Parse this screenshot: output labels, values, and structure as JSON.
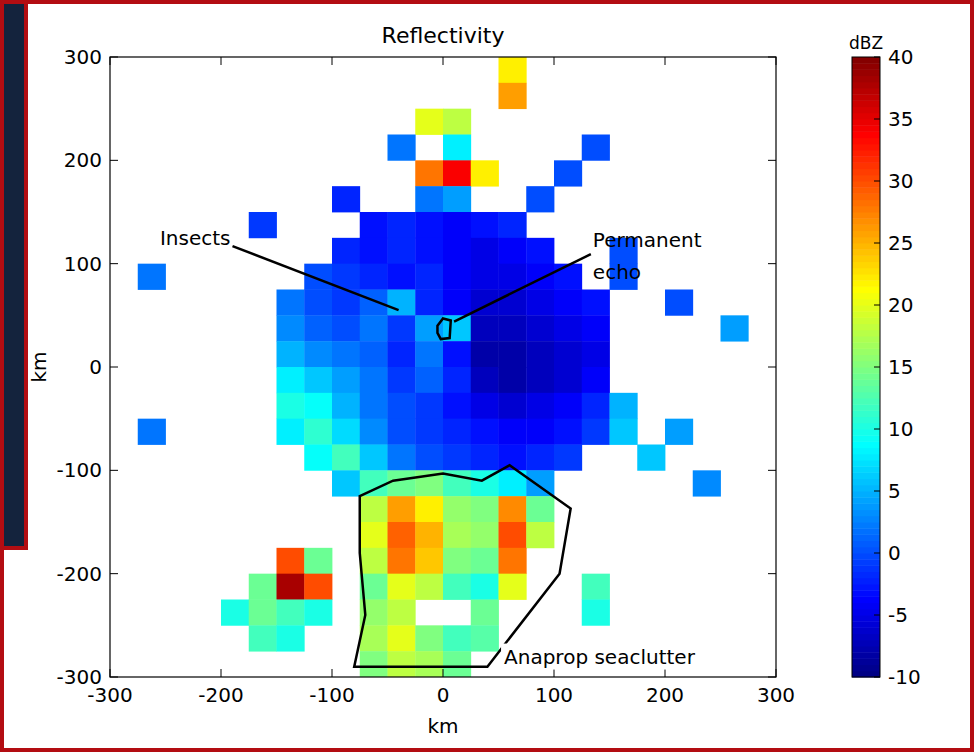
{
  "chart_data": {
    "type": "heatmap",
    "title": "Reflectivity",
    "xlabel": "km",
    "ylabel": "km",
    "xlim": [
      -300,
      300
    ],
    "ylim": [
      -300,
      300
    ],
    "xticks": [
      -300,
      -200,
      -100,
      0,
      100,
      200,
      300
    ],
    "yticks": [
      -300,
      -200,
      -100,
      0,
      100,
      200,
      300
    ],
    "x": [
      -287.5,
      -262.5,
      -237.5,
      -212.5,
      -187.5,
      -162.5,
      -137.5,
      -112.5,
      -87.5,
      -62.5,
      -37.5,
      -12.5,
      12.5,
      37.5,
      62.5,
      87.5,
      112.5,
      137.5,
      162.5,
      187.5,
      212.5,
      237.5,
      262.5,
      287.5
    ],
    "y": [
      287.5,
      262.5,
      237.5,
      212.5,
      187.5,
      162.5,
      137.5,
      112.5,
      87.5,
      62.5,
      37.5,
      12.5,
      -12.5,
      -37.5,
      -62.5,
      -87.5,
      -112.5,
      -137.5,
      -162.5,
      -187.5,
      -212.5,
      -237.5,
      -262.5,
      -287.5
    ],
    "z": [
      [
        null,
        null,
        null,
        null,
        null,
        null,
        null,
        null,
        null,
        null,
        null,
        null,
        null,
        null,
        22,
        null,
        null,
        null,
        null,
        null,
        null,
        null,
        null,
        null
      ],
      [
        null,
        null,
        null,
        null,
        null,
        null,
        null,
        null,
        null,
        null,
        null,
        null,
        null,
        null,
        26,
        null,
        null,
        null,
        null,
        null,
        null,
        null,
        null,
        null
      ],
      [
        null,
        null,
        null,
        null,
        null,
        null,
        null,
        null,
        null,
        null,
        null,
        20,
        18,
        null,
        null,
        null,
        null,
        null,
        null,
        null,
        null,
        null,
        null,
        null
      ],
      [
        null,
        null,
        null,
        null,
        null,
        null,
        null,
        null,
        null,
        null,
        2,
        null,
        8,
        null,
        null,
        null,
        null,
        0,
        null,
        null,
        null,
        null,
        null,
        null
      ],
      [
        null,
        null,
        null,
        null,
        null,
        null,
        null,
        null,
        null,
        null,
        null,
        28,
        34,
        22,
        null,
        null,
        0,
        null,
        null,
        null,
        null,
        null,
        null,
        null
      ],
      [
        null,
        null,
        null,
        null,
        null,
        null,
        null,
        null,
        -2,
        null,
        null,
        2,
        4,
        null,
        null,
        0,
        null,
        null,
        null,
        null,
        null,
        null,
        null,
        null
      ],
      [
        null,
        null,
        null,
        null,
        null,
        -1,
        null,
        null,
        null,
        -3,
        -2,
        -3,
        -4,
        -3,
        -2,
        null,
        null,
        null,
        null,
        null,
        null,
        null,
        null,
        null
      ],
      [
        null,
        null,
        null,
        null,
        null,
        null,
        null,
        null,
        -2,
        -3,
        -2,
        -3,
        -4,
        -5,
        -4,
        -3,
        null,
        null,
        0,
        null,
        null,
        null,
        null,
        null
      ],
      [
        null,
        2,
        null,
        null,
        null,
        null,
        null,
        0,
        -1,
        -2,
        -3,
        -2,
        -4,
        -5,
        -5,
        -4,
        -3,
        null,
        0,
        null,
        null,
        null,
        null,
        null
      ],
      [
        null,
        null,
        null,
        null,
        null,
        null,
        2,
        0,
        -1,
        1,
        5,
        -2,
        -4,
        -6,
        -6,
        -5,
        -4,
        -3,
        null,
        null,
        0,
        null,
        null,
        null
      ],
      [
        null,
        null,
        null,
        null,
        null,
        null,
        3,
        1,
        0,
        2,
        -1,
        4,
        6,
        -7,
        -7,
        -6,
        -5,
        -4,
        null,
        null,
        null,
        null,
        4,
        null
      ],
      [
        null,
        null,
        null,
        null,
        null,
        null,
        5,
        3,
        2,
        1,
        -2,
        2,
        -3,
        -8,
        -8,
        -7,
        -6,
        -5,
        null,
        null,
        null,
        null,
        null,
        null
      ],
      [
        null,
        null,
        null,
        null,
        null,
        null,
        8,
        6,
        4,
        2,
        -1,
        1,
        -2,
        -7,
        -8,
        -7,
        -6,
        -4,
        null,
        null,
        null,
        null,
        null,
        null
      ],
      [
        null,
        null,
        null,
        null,
        null,
        null,
        10,
        9,
        5,
        2,
        0,
        -1,
        -3,
        -5,
        -6,
        -5,
        -4,
        -2,
        5,
        null,
        null,
        null,
        null,
        null
      ],
      [
        null,
        2,
        null,
        null,
        null,
        null,
        8,
        11,
        7,
        3,
        0,
        -1,
        -2,
        -3,
        -4,
        -4,
        -3,
        -1,
        6,
        null,
        4,
        null,
        null,
        null
      ],
      [
        null,
        null,
        null,
        null,
        null,
        null,
        null,
        9,
        12,
        6,
        2,
        0,
        -1,
        -2,
        -3,
        -2,
        -1,
        null,
        null,
        6,
        null,
        null,
        null,
        null
      ],
      [
        null,
        null,
        null,
        null,
        null,
        null,
        null,
        null,
        6,
        12,
        14,
        15,
        12,
        10,
        8,
        4,
        null,
        null,
        null,
        null,
        null,
        3,
        null,
        null
      ],
      [
        null,
        null,
        null,
        null,
        null,
        null,
        null,
        null,
        null,
        18,
        26,
        22,
        16,
        15,
        27,
        14,
        null,
        null,
        null,
        null,
        null,
        null,
        null,
        null
      ],
      [
        null,
        null,
        null,
        null,
        null,
        null,
        null,
        null,
        null,
        20,
        29,
        25,
        17,
        16,
        30,
        18,
        null,
        null,
        null,
        null,
        null,
        null,
        null,
        null
      ],
      [
        null,
        null,
        null,
        null,
        null,
        null,
        30,
        14,
        null,
        18,
        28,
        24,
        15,
        14,
        28,
        null,
        null,
        null,
        null,
        null,
        null,
        null,
        null,
        null
      ],
      [
        null,
        null,
        null,
        null,
        null,
        14,
        38,
        30,
        null,
        14,
        20,
        18,
        12,
        10,
        20,
        null,
        null,
        12,
        null,
        null,
        null,
        null,
        null,
        null
      ],
      [
        null,
        null,
        null,
        null,
        10,
        14,
        12,
        10,
        null,
        16,
        18,
        null,
        null,
        14,
        null,
        null,
        null,
        10,
        null,
        null,
        null,
        null,
        null,
        null
      ],
      [
        null,
        null,
        null,
        null,
        null,
        12,
        10,
        null,
        null,
        17,
        20,
        15,
        12,
        13,
        null,
        null,
        null,
        null,
        null,
        null,
        null,
        null,
        null,
        null
      ],
      [
        null,
        null,
        null,
        null,
        null,
        null,
        null,
        null,
        null,
        15,
        18,
        17,
        14,
        null,
        null,
        null,
        null,
        null,
        null,
        null,
        null,
        null,
        null,
        null
      ]
    ],
    "colorbar": {
      "label": "dBZ",
      "lim": [
        -10,
        40
      ],
      "ticks": [
        -10,
        -5,
        0,
        5,
        10,
        15,
        20,
        25,
        30,
        35,
        40
      ]
    },
    "annotations": [
      {
        "text": "Insects",
        "text_xy": [
          -255,
          118
        ],
        "xy": [
          -40,
          55
        ]
      },
      {
        "text": "Permanent echo",
        "text_xy": [
          135,
          116
        ],
        "xy": [
          10,
          44
        ],
        "polygon": [
          [
            -5,
            40
          ],
          [
            0,
            47
          ],
          [
            7,
            45
          ],
          [
            6,
            28
          ],
          [
            -2,
            27
          ],
          [
            -5,
            33
          ]
        ]
      },
      {
        "text": "Anaprop seaclutter",
        "text_xy": [
          55,
          -287
        ],
        "polygon": [
          [
            -75,
            -125
          ],
          [
            -45,
            -110
          ],
          [
            0,
            -103
          ],
          [
            35,
            -110
          ],
          [
            60,
            -95
          ],
          [
            115,
            -137
          ],
          [
            105,
            -200
          ],
          [
            40,
            -290
          ],
          [
            -80,
            -290
          ],
          [
            -70,
            -240
          ],
          [
            -75,
            -180
          ]
        ]
      }
    ]
  }
}
